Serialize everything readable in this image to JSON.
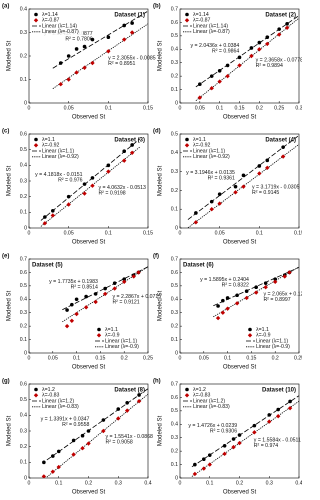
{
  "chart_data": [
    {
      "type": "scatter",
      "panel": "(a)",
      "title": "Dataset (1)",
      "xlabel": "Observed St",
      "ylabel": "Modeled St",
      "legend": "upper left",
      "xlim": [
        0,
        0.15
      ],
      "xticks": [
        0,
        0.05,
        0.1,
        0.15
      ],
      "ylim": [
        0,
        0.4
      ],
      "yticks": [
        0,
        0.1,
        0.2,
        0.3,
        0.4
      ],
      "x": [
        0.04,
        0.05,
        0.06,
        0.07,
        0.08,
        0.1,
        0.12,
        0.13
      ],
      "fit_x": [
        0.03,
        0.15
      ],
      "series": [
        {
          "name": "λ=1.14",
          "color": "#000000",
          "values": [
            0.17,
            0.2,
            0.23,
            0.24,
            0.27,
            0.28,
            0.33,
            0.34
          ],
          "fit_name": "Linear (λ=1.14)",
          "fit": [
            0.148,
            0.391
          ],
          "equation": "y = 2.0245x + 0.0877",
          "r2": "R² = 0.7806"
        },
        {
          "name": "λ=-0.87",
          "color": "#c00000",
          "values": [
            0.08,
            0.1,
            0.13,
            0.15,
            0.17,
            0.22,
            0.27,
            0.3
          ],
          "fit_name": "Linear (λ=-0.87)",
          "fit": [
            0.061,
            0.337
          ],
          "equation": "y = 2.3055x - 0.0085",
          "r2": "R² = 0.8951"
        }
      ]
    },
    {
      "type": "scatter",
      "panel": "(b)",
      "title": "Dataset (2)",
      "xlabel": "Observed St",
      "ylabel": "Modeled St",
      "legend": "upper left",
      "xlim": [
        0,
        0.3
      ],
      "xticks": [
        0,
        0.05,
        0.1,
        0.15,
        0.2,
        0.25,
        0.3
      ],
      "ylim": [
        0,
        0.7
      ],
      "yticks": [
        0,
        0.1,
        0.2,
        0.3,
        0.4,
        0.5,
        0.6,
        0.7
      ],
      "x": [
        0.05,
        0.08,
        0.1,
        0.12,
        0.15,
        0.18,
        0.2,
        0.22,
        0.25,
        0.27
      ],
      "fit_x": [
        0.04,
        0.3
      ],
      "series": [
        {
          "name": "λ=1.14",
          "color": "#000000",
          "values": [
            0.14,
            0.2,
            0.24,
            0.28,
            0.34,
            0.41,
            0.45,
            0.49,
            0.55,
            0.59
          ],
          "fit_name": "Linear (λ=1.14)",
          "fit": [
            0.12,
            0.651
          ],
          "equation": "y = 2.0436x + 0.0384",
          "r2": "R² = 0.9864"
        },
        {
          "name": "λ=-0.87",
          "color": "#c00000",
          "values": [
            0.04,
            0.11,
            0.16,
            0.2,
            0.28,
            0.35,
            0.4,
            0.44,
            0.51,
            0.56
          ],
          "fit_name": "Linear (λ=-0.87)",
          "fit": [
            0.017,
            0.632
          ],
          "equation": "y = 2.3658x - 0.0778",
          "r2": "R² = 0.9894"
        }
      ]
    },
    {
      "type": "scatter",
      "panel": "(c)",
      "title": "Dataset (3)",
      "xlabel": "Observed St",
      "ylabel": "Modeled St",
      "legend": "upper left",
      "xlim": [
        0,
        0.15
      ],
      "xticks": [
        0,
        0.05,
        0.1,
        0.15
      ],
      "ylim": [
        0,
        0.6
      ],
      "yticks": [
        0,
        0.1,
        0.2,
        0.3,
        0.4,
        0.5,
        0.6
      ],
      "x": [
        0.02,
        0.03,
        0.05,
        0.07,
        0.08,
        0.1,
        0.12,
        0.13
      ],
      "fit_x": [
        0.015,
        0.14
      ],
      "series": [
        {
          "name": "λ=1.1",
          "color": "#000000",
          "values": [
            0.07,
            0.11,
            0.2,
            0.28,
            0.32,
            0.4,
            0.49,
            0.53
          ],
          "fit_name": "Linear (λ=1.1)",
          "fit": [
            0.048,
            0.57
          ],
          "equation": "y = 4.1818x - 0.0151",
          "r2": "R² = 0.976"
        },
        {
          "name": "λ=-0.92",
          "color": "#c00000",
          "values": [
            0.03,
            0.08,
            0.15,
            0.22,
            0.27,
            0.36,
            0.43,
            0.48
          ],
          "fit_name": "Linear (λ=-0.92)",
          "fit": [
            0.01,
            0.518
          ],
          "equation": "y = 4.0632x - 0.0513",
          "r2": "R² = 0.9198"
        }
      ]
    },
    {
      "type": "scatter",
      "panel": "(d)",
      "title": "Dataset (4)",
      "xlabel": "Observed St",
      "ylabel": "Modeled St",
      "legend": "upper left",
      "xlim": [
        0,
        0.15
      ],
      "xticks": [
        0,
        0.05,
        0.1,
        0.15
      ],
      "ylim": [
        0,
        0.5
      ],
      "yticks": [
        0,
        0.1,
        0.2,
        0.3,
        0.4,
        0.5
      ],
      "x": [
        0.02,
        0.04,
        0.05,
        0.07,
        0.08,
        0.1,
        0.11,
        0.13
      ],
      "fit_x": [
        0.01,
        0.15
      ],
      "series": [
        {
          "name": "λ=1.1",
          "color": "#000000",
          "values": [
            0.08,
            0.14,
            0.18,
            0.22,
            0.28,
            0.33,
            0.36,
            0.43
          ],
          "fit_name": "Linear (λ=1.1)",
          "fit": [
            0.045,
            0.493
          ],
          "equation": "y = 3.1946x + 0.0135",
          "r2": "R² = 0.9361"
        },
        {
          "name": "λ=-0.92",
          "color": "#c00000",
          "values": [
            0.03,
            0.1,
            0.13,
            0.19,
            0.22,
            0.29,
            0.32,
            0.38
          ],
          "fit_name": "Linear (λ=-0.92)",
          "fit": [
            0.001,
            0.445
          ],
          "equation": "y = 3.1719x - 0.0305",
          "r2": "R² = 0.9145"
        }
      ]
    },
    {
      "type": "scatter",
      "panel": "(e)",
      "title": "Dataset (5)",
      "xlabel": "Observed St",
      "ylabel": "Modeled St",
      "legend": "lower right",
      "xlim": [
        0,
        0.25
      ],
      "xticks": [
        0,
        0.05,
        0.1,
        0.15,
        0.2,
        0.25
      ],
      "ylim": [
        0,
        0.7
      ],
      "yticks": [
        0,
        0.1,
        0.2,
        0.3,
        0.4,
        0.5,
        0.6,
        0.7
      ],
      "x": [
        0.08,
        0.09,
        0.1,
        0.12,
        0.14,
        0.16,
        0.18,
        0.2,
        0.22,
        0.23
      ],
      "fit_x": [
        0.07,
        0.25
      ],
      "series": [
        {
          "name": "λ=1.1",
          "color": "#000000",
          "values": [
            0.32,
            0.36,
            0.4,
            0.42,
            0.44,
            0.48,
            0.52,
            0.55,
            0.58,
            0.6
          ],
          "fit_name": "Linear (λ=1.1)",
          "fit": [
            0.322,
            0.642
          ],
          "equation": "y = 1.7735x + 0.1983",
          "r2": "R² = 0.8514"
        },
        {
          "name": "λ=-0.9",
          "color": "#c00000",
          "values": [
            0.2,
            0.24,
            0.29,
            0.34,
            0.38,
            0.44,
            0.48,
            0.53,
            0.57,
            0.6
          ],
          "fit_name": "Linear (λ=-0.9)",
          "fit": [
            0.232,
            0.643
          ],
          "equation": "y = 2.2867x + 0.0715",
          "r2": "R² = 0.9121"
        }
      ]
    },
    {
      "type": "scatter",
      "panel": "(f)",
      "title": "Dataset (6)",
      "xlabel": "Observed St",
      "ylabel": "Modeled St",
      "legend": "lower right",
      "xlim": [
        0,
        0.25
      ],
      "xticks": [
        0,
        0.05,
        0.1,
        0.15,
        0.2,
        0.25
      ],
      "ylim": [
        0,
        0.7
      ],
      "yticks": [
        0,
        0.1,
        0.2,
        0.3,
        0.4,
        0.5,
        0.6,
        0.7
      ],
      "x": [
        0.08,
        0.09,
        0.1,
        0.12,
        0.14,
        0.16,
        0.18,
        0.2,
        0.22,
        0.23
      ],
      "fit_x": [
        0.07,
        0.25
      ],
      "series": [
        {
          "name": "λ=1.1",
          "color": "#000000",
          "values": [
            0.35,
            0.39,
            0.41,
            0.43,
            0.46,
            0.49,
            0.52,
            0.55,
            0.58,
            0.6
          ],
          "fit_name": "Linear (λ=1.1)",
          "fit": [
            0.352,
            0.638
          ],
          "equation": "y = 1.5895x + 0.2404",
          "r2": "R² = 0.8322"
        },
        {
          "name": "λ=-0.9",
          "color": "#c00000",
          "values": [
            0.26,
            0.3,
            0.33,
            0.37,
            0.41,
            0.45,
            0.49,
            0.53,
            0.57,
            0.6
          ],
          "fit_name": "Linear (λ=-0.9)",
          "fit": [
            0.27,
            0.641
          ],
          "equation": "y = 2.065x + 0.1246",
          "r2": "R² = 0.8997"
        }
      ]
    },
    {
      "type": "scatter",
      "panel": "(g)",
      "title": "Dataset (8)",
      "xlabel": "Observed St",
      "ylabel": "Modeled St",
      "legend": "upper left",
      "xlim": [
        0,
        0.4
      ],
      "xticks": [
        0,
        0.1,
        0.2,
        0.3,
        0.4
      ],
      "ylim": [
        0,
        0.6
      ],
      "yticks": [
        0,
        0.1,
        0.2,
        0.3,
        0.4,
        0.5,
        0.6
      ],
      "x": [
        0.05,
        0.08,
        0.1,
        0.15,
        0.18,
        0.2,
        0.25,
        0.3,
        0.33,
        0.37
      ],
      "fit_x": [
        0.06,
        0.4
      ],
      "series": [
        {
          "name": "λ=1.2",
          "color": "#000000",
          "values": [
            0.1,
            0.14,
            0.17,
            0.24,
            0.27,
            0.3,
            0.37,
            0.44,
            0.48,
            0.53
          ],
          "fit_name": "Linear (λ=1.2)",
          "fit": [
            0.115,
            0.57
          ],
          "equation": "y = 1.3391x + 0.0347",
          "r2": "R² = 0.9558"
        },
        {
          "name": "λ=-0.83",
          "color": "#c00000",
          "values": [
            0.01,
            0.04,
            0.07,
            0.15,
            0.19,
            0.22,
            0.3,
            0.38,
            0.43,
            0.49
          ],
          "fit_name": "Linear (λ=-0.83)",
          "fit": [
            0.006,
            0.535
          ],
          "equation": "y = 1.5541x - 0.0868",
          "r2": "R² = 0.9058"
        }
      ]
    },
    {
      "type": "scatter",
      "panel": "(h)",
      "title": "Dataset (10)",
      "xlabel": "Observed St",
      "ylabel": "Modeled St",
      "legend": "upper left",
      "xlim": [
        0,
        0.4
      ],
      "xticks": [
        0,
        0.1,
        0.2,
        0.3,
        0.4
      ],
      "ylim": [
        0,
        0.7
      ],
      "yticks": [
        0,
        0.1,
        0.2,
        0.3,
        0.4,
        0.5,
        0.6,
        0.7
      ],
      "x": [
        0.05,
        0.08,
        0.1,
        0.15,
        0.18,
        0.2,
        0.25,
        0.3,
        0.33,
        0.37
      ],
      "fit_x": [
        0.04,
        0.4
      ],
      "series": [
        {
          "name": "λ=1.2",
          "color": "#000000",
          "values": [
            0.1,
            0.14,
            0.17,
            0.24,
            0.29,
            0.32,
            0.39,
            0.47,
            0.51,
            0.57
          ],
          "fit_name": "Linear (λ=1.2)",
          "fit": [
            0.083,
            0.613
          ],
          "equation": "y = 1.4726x + 0.0239",
          "r2": "R² = 0.9306"
        },
        {
          "name": "λ=-0.83",
          "color": "#c00000",
          "values": [
            0.03,
            0.07,
            0.1,
            0.18,
            0.23,
            0.26,
            0.34,
            0.42,
            0.46,
            0.52
          ],
          "fit_name": "Linear (λ=-0.83)",
          "fit": [
            0.011,
            0.572
          ],
          "equation": "y = 1.5584x - 0.0511",
          "r2": "R² = 0.974"
        }
      ]
    }
  ]
}
